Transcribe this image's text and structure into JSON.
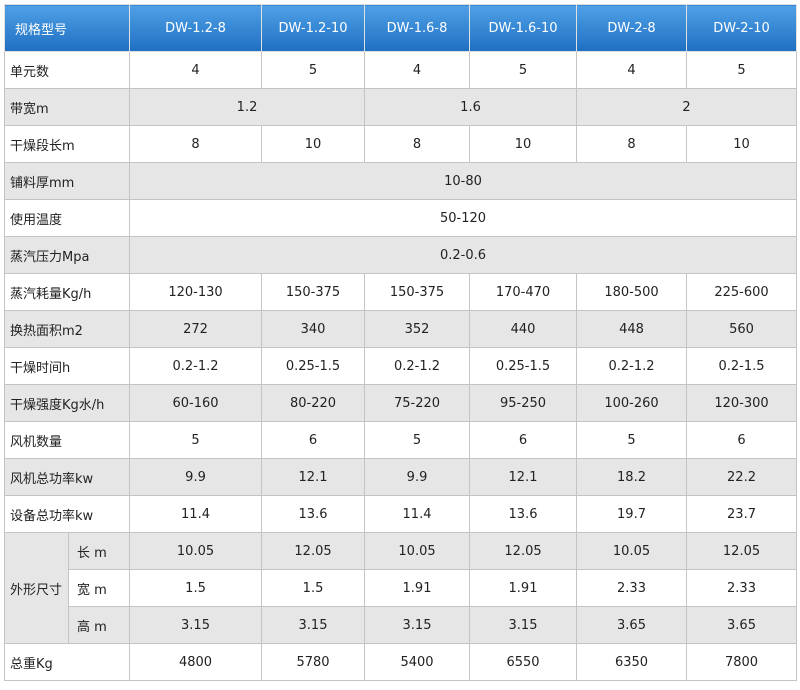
{
  "table": {
    "header": [
      "规格型号",
      "DW-1.2-8",
      "DW-1.2-10",
      "DW-1.6-8",
      "DW-1.6-10",
      "DW-2-8",
      "DW-2-10"
    ],
    "rows": [
      {
        "label": "单元数",
        "cells": [
          "4",
          "5",
          "4",
          "5",
          "4",
          "5"
        ]
      },
      {
        "label": "带宽m",
        "cells": [
          "1.2",
          "1.6",
          "2"
        ]
      },
      {
        "label": "干燥段长m",
        "cells": [
          "8",
          "10",
          "8",
          "10",
          "8",
          "10"
        ]
      },
      {
        "label": "铺料厚mm",
        "cells": [
          "10-80"
        ]
      },
      {
        "label": "使用温度",
        "cells": [
          "50-120"
        ]
      },
      {
        "label": "蒸汽压力Mpa",
        "cells": [
          "0.2-0.6"
        ]
      },
      {
        "label": "蒸汽耗量Kg/h",
        "cells": [
          "120-130",
          "150-375",
          "150-375",
          "170-470",
          "180-500",
          "225-600"
        ]
      },
      {
        "label": "换热面积m2",
        "cells": [
          "272",
          "340",
          "352",
          "440",
          "448",
          "560"
        ]
      },
      {
        "label": "干燥时间h",
        "cells": [
          "0.2-1.2",
          "0.25-1.5",
          "0.2-1.2",
          "0.25-1.5",
          "0.2-1.2",
          "0.2-1.5"
        ]
      },
      {
        "label": "干燥强度Kg水/h",
        "cells": [
          "60-160",
          "80-220",
          "75-220",
          "95-250",
          "100-260",
          "120-300"
        ]
      },
      {
        "label": "风机数量",
        "cells": [
          "5",
          "6",
          "5",
          "6",
          "5",
          "6"
        ]
      },
      {
        "label": "风机总功率kw",
        "cells": [
          "9.9",
          "12.1",
          "9.9",
          "12.1",
          "18.2",
          "22.2"
        ]
      },
      {
        "label": "设备总功率kw",
        "cells": [
          "11.4",
          "13.6",
          "11.4",
          "13.6",
          "19.7",
          "23.7"
        ]
      }
    ],
    "dimensions": {
      "label": "外形尺寸",
      "rows": [
        {
          "label": "长 m",
          "cells": [
            "10.05",
            "12.05",
            "10.05",
            "12.05",
            "10.05",
            "12.05"
          ]
        },
        {
          "label": "宽 m",
          "cells": [
            "1.5",
            "1.5",
            "1.91",
            "1.91",
            "2.33",
            "2.33"
          ]
        },
        {
          "label": "高 m",
          "cells": [
            "3.15",
            "3.15",
            "3.15",
            "3.15",
            "3.65",
            "3.65"
          ]
        }
      ]
    },
    "last_row": {
      "label": "总重Kg",
      "cells": [
        "4800",
        "5780",
        "5400",
        "6550",
        "6350",
        "7800"
      ]
    }
  }
}
